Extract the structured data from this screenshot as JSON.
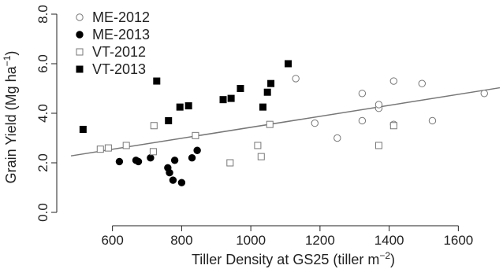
{
  "chart_data": {
    "type": "scatter",
    "xlabel_main": "Tiller Density at GS25 (tiller m",
    "xlabel_sup": "−2",
    "xlabel_end": ")",
    "ylabel_main": "Grain Yield (Mg ha",
    "ylabel_sup": "−1",
    "ylabel_end": ")",
    "xlim": [
      480,
      1720
    ],
    "ylim": [
      0,
      8
    ],
    "xticks": [
      "600",
      "800",
      "1000",
      "1200",
      "1400",
      "1600"
    ],
    "xtick_values": [
      600,
      800,
      1000,
      1200,
      1400,
      1600
    ],
    "yticks": [
      "0.0",
      "2.0",
      "4.0",
      "6.0",
      "8.0"
    ],
    "ytick_values": [
      0,
      2,
      4,
      6,
      8
    ],
    "grid": false,
    "legend_position": "top-left",
    "trend_line": {
      "x": [
        480,
        1720
      ],
      "y": [
        2.28,
        5.03
      ]
    },
    "series": [
      {
        "name": "ME-2012",
        "marker": "open-circle",
        "color": "#777777",
        "points": [
          [
            1130,
            5.4
          ],
          [
            1185,
            3.6
          ],
          [
            1250,
            3.0
          ],
          [
            1322,
            4.8
          ],
          [
            1322,
            3.7
          ],
          [
            1370,
            4.2
          ],
          [
            1370,
            4.35
          ],
          [
            1413,
            3.55
          ],
          [
            1413,
            5.3
          ],
          [
            1495,
            5.2
          ],
          [
            1525,
            3.7
          ],
          [
            1675,
            4.8
          ]
        ]
      },
      {
        "name": "ME-2013",
        "marker": "filled-circle",
        "color": "#000000",
        "points": [
          [
            620,
            2.05
          ],
          [
            668,
            2.1
          ],
          [
            675,
            2.05
          ],
          [
            710,
            2.2
          ],
          [
            760,
            1.8
          ],
          [
            765,
            1.6
          ],
          [
            775,
            1.3
          ],
          [
            780,
            2.1
          ],
          [
            800,
            1.2
          ],
          [
            830,
            2.2
          ],
          [
            845,
            2.5
          ]
        ]
      },
      {
        "name": "VT-2012",
        "marker": "open-square",
        "color": "#777777",
        "points": [
          [
            565,
            2.55
          ],
          [
            588,
            2.6
          ],
          [
            640,
            2.7
          ],
          [
            718,
            2.45
          ],
          [
            720,
            3.5
          ],
          [
            840,
            3.1
          ],
          [
            940,
            2.0
          ],
          [
            1020,
            2.7
          ],
          [
            1030,
            2.25
          ],
          [
            1055,
            3.55
          ],
          [
            1370,
            2.7
          ],
          [
            1413,
            3.5
          ]
        ]
      },
      {
        "name": "VT-2013",
        "marker": "filled-square",
        "color": "#000000",
        "points": [
          [
            515,
            3.35
          ],
          [
            728,
            5.3
          ],
          [
            762,
            3.7
          ],
          [
            795,
            4.25
          ],
          [
            820,
            4.3
          ],
          [
            920,
            4.55
          ],
          [
            943,
            4.6
          ],
          [
            970,
            5.0
          ],
          [
            1035,
            4.25
          ],
          [
            1048,
            4.85
          ],
          [
            1058,
            5.2
          ],
          [
            1108,
            6.0
          ]
        ]
      }
    ]
  }
}
